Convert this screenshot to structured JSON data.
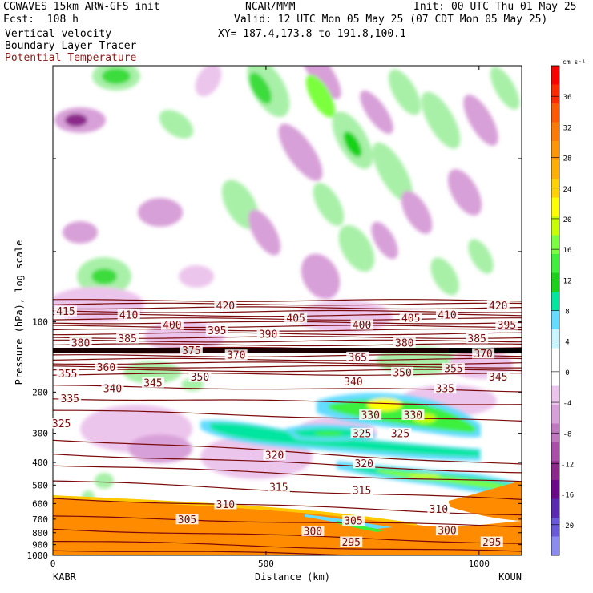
{
  "header": {
    "model_line": "CGWAVES 15km ARW-GFS init",
    "fcst_line": "Fcst:  108 h",
    "field1": "Vertical velocity",
    "field2": "Boundary Layer Tracer",
    "field3": "Potential Temperature",
    "center": "NCAR/MMM",
    "init": "Init: 00 UTC Thu 01 May 25",
    "valid": "Valid: 12 UTC Mon 05 May 25 (07 CDT Mon 05 May 25)",
    "xy": "XY= 187.4,173.8 to 191.8,100.1"
  },
  "colors": {
    "theta": "#7a0a0a",
    "tracer": "#ff8c00"
  },
  "chart_data": {
    "type": "heatmap",
    "xlabel": "Distance (km)",
    "ylabel": "Pressure (hPa), log scale",
    "xlim": [
      0,
      1100
    ],
    "ylim": [
      1000,
      8
    ],
    "y_scale": "log",
    "x_ticks": [
      0,
      500,
      1000
    ],
    "y_ticks": [
      100,
      200,
      300,
      400,
      500,
      600,
      700,
      800,
      900,
      1000
    ],
    "endpoints": {
      "left": "KABR",
      "right": "KOUN"
    },
    "colorbar": {
      "units": "cm s⁻¹",
      "ticks": [
        36,
        32,
        28,
        24,
        20,
        16,
        12,
        8,
        4,
        0,
        -4,
        -8,
        -12,
        -16,
        -20
      ],
      "colors": [
        "#ff0000",
        "#ff2a00",
        "#ff5a00",
        "#ff7a00",
        "#ff9500",
        "#ffb000",
        "#ffd200",
        "#ffff00",
        "#c8ff00",
        "#7cff3c",
        "#3cf03c",
        "#19d219",
        "#00e6a0",
        "#64dcff",
        "#c8f5ff",
        "#ffffff",
        "#ffffff",
        "#ecc5ec",
        "#d8a0d8",
        "#c078c0",
        "#a850a8",
        "#8c2a8c",
        "#6a0a8a",
        "#5a2ab0",
        "#6a5ad8",
        "#8c8cf0"
      ]
    },
    "theta_labels": [
      {
        "label": "415",
        "x": 30,
        "p": 91
      },
      {
        "label": "410",
        "x": 178,
        "p": 94
      },
      {
        "label": "420",
        "x": 405,
        "p": 86
      },
      {
        "label": "405",
        "x": 570,
        "p": 97
      },
      {
        "label": "405",
        "x": 840,
        "p": 97
      },
      {
        "label": "410",
        "x": 925,
        "p": 94
      },
      {
        "label": "420",
        "x": 1045,
        "p": 86
      },
      {
        "label": "400",
        "x": 280,
        "p": 104
      },
      {
        "label": "395",
        "x": 385,
        "p": 110
      },
      {
        "label": "390",
        "x": 505,
        "p": 114
      },
      {
        "label": "400",
        "x": 725,
        "p": 104
      },
      {
        "label": "395",
        "x": 1065,
        "p": 104
      },
      {
        "label": "380",
        "x": 65,
        "p": 124
      },
      {
        "label": "385",
        "x": 175,
        "p": 119
      },
      {
        "label": "380",
        "x": 825,
        "p": 124
      },
      {
        "label": "385",
        "x": 995,
        "p": 119
      },
      {
        "label": "375",
        "x": 325,
        "p": 134
      },
      {
        "label": "370",
        "x": 430,
        "p": 140
      },
      {
        "label": "370",
        "x": 1010,
        "p": 138
      },
      {
        "label": "365",
        "x": 715,
        "p": 143
      },
      {
        "label": "360",
        "x": 125,
        "p": 158
      },
      {
        "label": "355",
        "x": 35,
        "p": 168
      },
      {
        "label": "350",
        "x": 345,
        "p": 174
      },
      {
        "label": "350",
        "x": 820,
        "p": 166
      },
      {
        "label": "355",
        "x": 940,
        "p": 160
      },
      {
        "label": "345",
        "x": 235,
        "p": 184
      },
      {
        "label": "345",
        "x": 1045,
        "p": 174
      },
      {
        "label": "340",
        "x": 140,
        "p": 195
      },
      {
        "label": "340",
        "x": 705,
        "p": 182
      },
      {
        "label": "335",
        "x": 40,
        "p": 215
      },
      {
        "label": "335",
        "x": 920,
        "p": 195
      },
      {
        "label": "330",
        "x": 745,
        "p": 253
      },
      {
        "label": "330",
        "x": 845,
        "p": 253
      },
      {
        "label": "325",
        "x": 20,
        "p": 275
      },
      {
        "label": "325",
        "x": 725,
        "p": 303
      },
      {
        "label": "325",
        "x": 815,
        "p": 303
      },
      {
        "label": "320",
        "x": 520,
        "p": 375
      },
      {
        "label": "320",
        "x": 730,
        "p": 408
      },
      {
        "label": "315",
        "x": 530,
        "p": 515
      },
      {
        "label": "315",
        "x": 725,
        "p": 532
      },
      {
        "label": "310",
        "x": 405,
        "p": 610
      },
      {
        "label": "310",
        "x": 905,
        "p": 640
      },
      {
        "label": "305",
        "x": 315,
        "p": 708
      },
      {
        "label": "305",
        "x": 705,
        "p": 718
      },
      {
        "label": "300",
        "x": 610,
        "p": 795
      },
      {
        "label": "300",
        "x": 925,
        "p": 790
      },
      {
        "label": "295",
        "x": 700,
        "p": 885
      },
      {
        "label": "295",
        "x": 1030,
        "p": 885
      }
    ]
  }
}
